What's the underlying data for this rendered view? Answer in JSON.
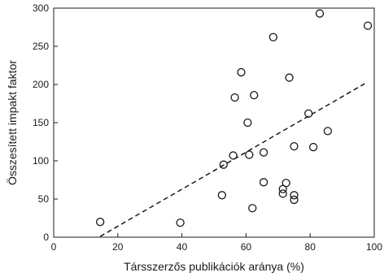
{
  "chart_data": {
    "type": "scatter",
    "xlabel": "Társszerzős publikációk aránya (%)",
    "ylabel": "Összesített impakt faktor",
    "xlim": [
      0,
      100
    ],
    "ylim": [
      0,
      300
    ],
    "xticks": [
      0,
      20,
      40,
      60,
      80,
      100
    ],
    "yticks": [
      0,
      50,
      100,
      150,
      200,
      250,
      300
    ],
    "grid": false,
    "legend": "none",
    "marker": "open-circle",
    "series": [
      {
        "points": [
          {
            "x": 14.5,
            "y": 20
          },
          {
            "x": 39.5,
            "y": 19
          },
          {
            "x": 52.5,
            "y": 55
          },
          {
            "x": 53,
            "y": 95
          },
          {
            "x": 56,
            "y": 107
          },
          {
            "x": 56.5,
            "y": 183
          },
          {
            "x": 58.5,
            "y": 216
          },
          {
            "x": 60.5,
            "y": 150
          },
          {
            "x": 61,
            "y": 108
          },
          {
            "x": 62,
            "y": 38
          },
          {
            "x": 62.5,
            "y": 186
          },
          {
            "x": 65.5,
            "y": 72
          },
          {
            "x": 65.5,
            "y": 111
          },
          {
            "x": 68.5,
            "y": 262
          },
          {
            "x": 71.5,
            "y": 57
          },
          {
            "x": 71.5,
            "y": 63
          },
          {
            "x": 72.5,
            "y": 71
          },
          {
            "x": 73.5,
            "y": 209
          },
          {
            "x": 75,
            "y": 119
          },
          {
            "x": 75,
            "y": 55
          },
          {
            "x": 75,
            "y": 49
          },
          {
            "x": 79.5,
            "y": 162
          },
          {
            "x": 81,
            "y": 118
          },
          {
            "x": 83,
            "y": 293
          },
          {
            "x": 85.5,
            "y": 139
          },
          {
            "x": 98,
            "y": 277
          }
        ]
      }
    ],
    "trendline": {
      "style": "dashed",
      "x": [
        14.5,
        97
      ],
      "y": [
        1,
        201
      ]
    }
  }
}
